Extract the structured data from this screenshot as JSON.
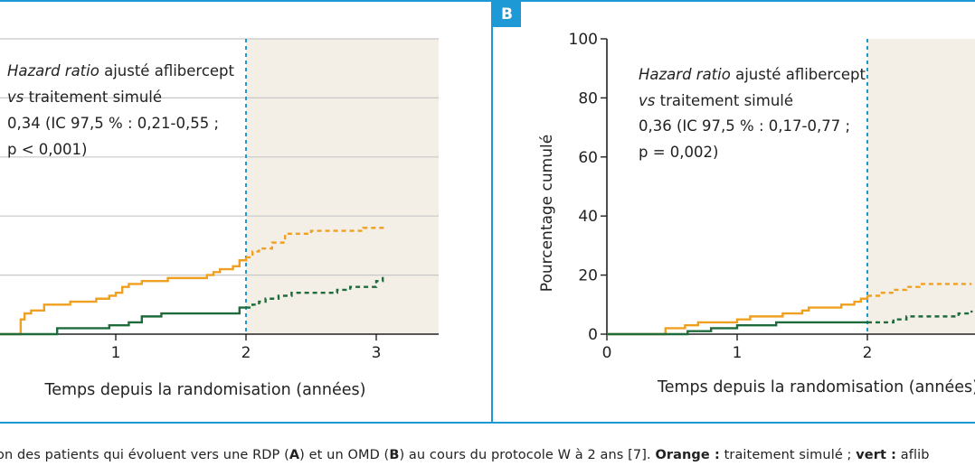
{
  "panels": [
    {
      "label": "",
      "annotation": {
        "lines": [
          "Hazard ratio ajusté aflibercept",
          "vs traitement simulé",
          "0,34 (IC 97,5 % : 0,21-0,55 ;",
          "p < 0,001)"
        ]
      },
      "xlabel": "Temps depuis la randomisation (années)",
      "x_ticks": [
        "1",
        "2",
        "3"
      ],
      "y_ticks": [],
      "ylabel": ""
    },
    {
      "label": "B",
      "annotation": {
        "lines": [
          "Hazard ratio ajusté aflibercept",
          "vs traitement simulé",
          "0,36 (IC 97,5 % : 0,17-0,77 ;",
          "p = 0,002)"
        ]
      },
      "xlabel": "Temps depuis la randomisation (années)",
      "x_ticks": [
        "0",
        "1",
        "2"
      ],
      "y_ticks": [
        "0",
        "20",
        "40",
        "60",
        "80",
        "100"
      ],
      "ylabel": "Pourcentage cumulé"
    }
  ],
  "caption": {
    "pre": "on des patients qui évoluent vers une RDP (",
    "a": "A",
    "mid1": ") et un OMD (",
    "b": "B",
    "mid2": ") au cours du protocole W à 2 ans [7]. ",
    "orange_label": "Orange :",
    "orange_text": " traitement simulé ; ",
    "green_label": "vert :",
    "green_text": " aflib"
  },
  "colors": {
    "frame": "#1d9ad6",
    "orange": "#f0a020",
    "green": "#1e6b3c",
    "shaded_region": "#f3eee6",
    "grid": "#c8c8c8",
    "divider": "#1d9ad6"
  },
  "chart_data": [
    {
      "type": "line",
      "panel": "A",
      "xlabel": "Temps depuis la randomisation (années)",
      "ylabel": "",
      "ylim": [
        0,
        100
      ],
      "shaded_from_x": 2,
      "vertical_marker_x": 2,
      "series": [
        {
          "color": "orange",
          "points": [
            [
              0,
              0
            ],
            [
              0.25,
              0
            ],
            [
              0.27,
              5
            ],
            [
              0.3,
              7
            ],
            [
              0.35,
              8
            ],
            [
              0.45,
              10
            ],
            [
              0.65,
              11
            ],
            [
              0.85,
              12
            ],
            [
              0.95,
              13
            ],
            [
              1.0,
              14
            ],
            [
              1.05,
              16
            ],
            [
              1.1,
              17
            ],
            [
              1.2,
              18
            ],
            [
              1.4,
              19
            ],
            [
              1.7,
              20
            ],
            [
              1.75,
              21
            ],
            [
              1.8,
              22
            ],
            [
              1.9,
              23
            ],
            [
              1.95,
              25
            ],
            [
              2.0,
              26
            ],
            [
              2.05,
              28
            ],
            [
              2.1,
              29
            ],
            [
              2.2,
              31
            ],
            [
              2.3,
              34
            ],
            [
              2.5,
              35
            ],
            [
              2.85,
              35
            ],
            [
              2.9,
              36
            ],
            [
              3.05,
              37
            ]
          ]
        },
        {
          "color": "green",
          "points": [
            [
              0,
              0
            ],
            [
              0.5,
              0
            ],
            [
              0.55,
              2
            ],
            [
              0.9,
              2
            ],
            [
              0.95,
              3
            ],
            [
              1.1,
              4
            ],
            [
              1.2,
              6
            ],
            [
              1.3,
              6
            ],
            [
              1.35,
              7
            ],
            [
              1.6,
              7
            ],
            [
              1.7,
              7
            ],
            [
              1.85,
              7
            ],
            [
              1.95,
              9
            ],
            [
              2.0,
              9
            ],
            [
              2.05,
              10
            ],
            [
              2.1,
              11
            ],
            [
              2.15,
              12
            ],
            [
              2.25,
              13
            ],
            [
              2.35,
              14
            ],
            [
              2.6,
              14
            ],
            [
              2.7,
              15
            ],
            [
              2.8,
              16
            ],
            [
              2.95,
              16
            ],
            [
              3.0,
              18
            ],
            [
              3.05,
              20
            ]
          ]
        }
      ]
    },
    {
      "type": "line",
      "panel": "B",
      "xlabel": "Temps depuis la randomisation (années)",
      "ylabel": "Pourcentage cumulé",
      "ylim": [
        0,
        100
      ],
      "y_ticks": [
        0,
        20,
        40,
        60,
        80,
        100
      ],
      "shaded_from_x": 2,
      "vertical_marker_x": 2,
      "series": [
        {
          "color": "orange",
          "points": [
            [
              0,
              0
            ],
            [
              0.4,
              0
            ],
            [
              0.45,
              2
            ],
            [
              0.6,
              3
            ],
            [
              0.7,
              4
            ],
            [
              1.0,
              5
            ],
            [
              1.1,
              6
            ],
            [
              1.3,
              6
            ],
            [
              1.35,
              7
            ],
            [
              1.5,
              8
            ],
            [
              1.55,
              9
            ],
            [
              1.8,
              10
            ],
            [
              1.9,
              11
            ],
            [
              1.95,
              12
            ],
            [
              2.0,
              13
            ],
            [
              2.1,
              14
            ],
            [
              2.2,
              15
            ],
            [
              2.3,
              16
            ],
            [
              2.4,
              17
            ],
            [
              2.8,
              17
            ]
          ]
        },
        {
          "color": "green",
          "points": [
            [
              0,
              0
            ],
            [
              0.6,
              0
            ],
            [
              0.62,
              1
            ],
            [
              0.8,
              2
            ],
            [
              1.0,
              3
            ],
            [
              1.3,
              4
            ],
            [
              1.6,
              4
            ],
            [
              1.9,
              4
            ],
            [
              2.0,
              4
            ],
            [
              2.15,
              4
            ],
            [
              2.2,
              5
            ],
            [
              2.3,
              6
            ],
            [
              2.6,
              6
            ],
            [
              2.7,
              7
            ],
            [
              2.8,
              8
            ]
          ]
        }
      ]
    }
  ]
}
